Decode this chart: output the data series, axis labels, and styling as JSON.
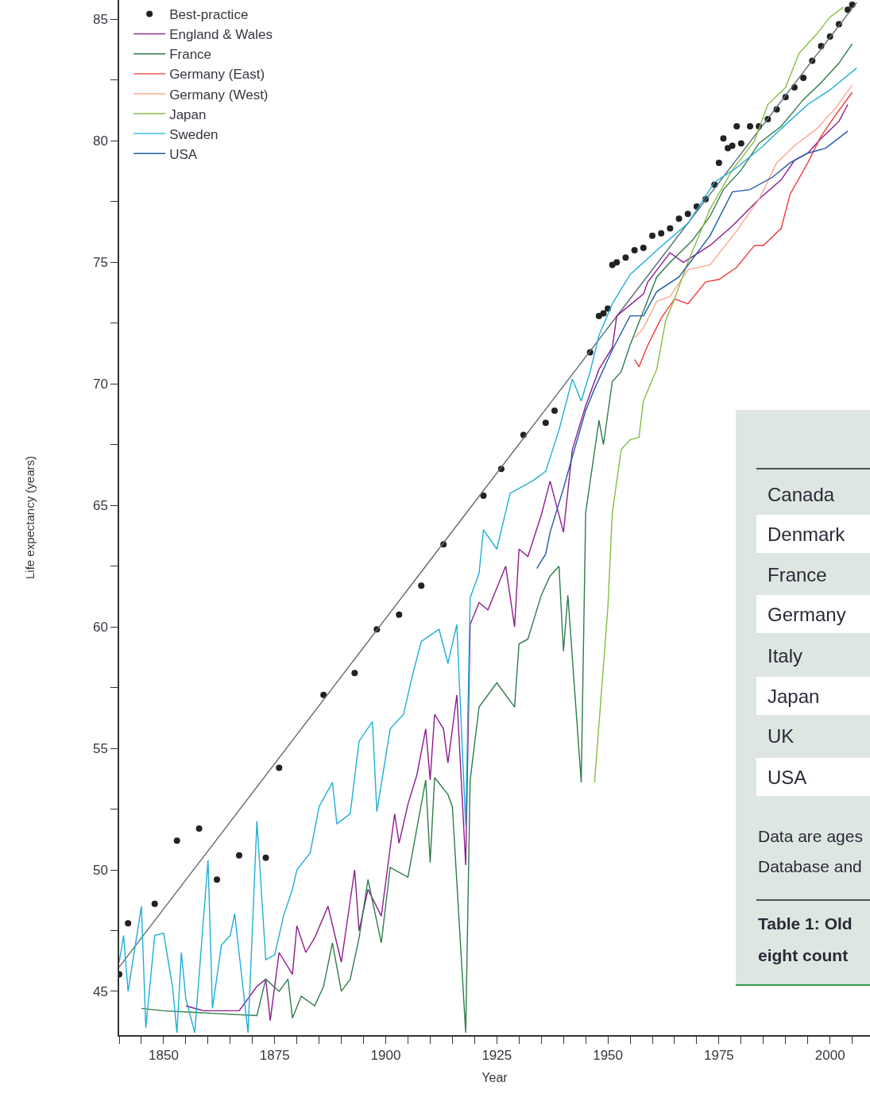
{
  "chart_data": {
    "type": "line",
    "xlabel": "Year",
    "ylabel": "Life expectancy (years)",
    "xlim": [
      1840,
      2009
    ],
    "ylim": [
      43.2,
      85.8
    ],
    "xticks": [
      {
        "value": 1840,
        "label": null
      },
      {
        "value": 1845,
        "label": null
      },
      1850,
      {
        "value": 1855,
        "label": null
      },
      {
        "value": 1860,
        "label": null
      },
      {
        "value": 1865,
        "label": null
      },
      {
        "value": 1870,
        "label": null
      },
      1875,
      {
        "value": 1880,
        "label": null
      },
      {
        "value": 1885,
        "label": null
      },
      {
        "value": 1890,
        "label": null
      },
      {
        "value": 1895,
        "label": null
      },
      1900,
      {
        "value": 1905,
        "label": null
      },
      {
        "value": 1910,
        "label": null
      },
      {
        "value": 1915,
        "label": null
      },
      {
        "value": 1920,
        "label": null
      },
      1925,
      {
        "value": 1930,
        "label": null
      },
      {
        "value": 1935,
        "label": null
      },
      {
        "value": 1940,
        "label": null
      },
      {
        "value": 1945,
        "label": null
      },
      1950,
      {
        "value": 1955,
        "label": null
      },
      {
        "value": 1960,
        "label": null
      },
      {
        "value": 1965,
        "label": null
      },
      {
        "value": 1970,
        "label": null
      },
      1975,
      {
        "value": 1980,
        "label": null
      },
      {
        "value": 1985,
        "label": null
      },
      {
        "value": 1990,
        "label": null
      },
      {
        "value": 1995,
        "label": null
      },
      2000,
      {
        "value": 2005,
        "label": null
      }
    ],
    "yticks": [
      45,
      {
        "value": 47.5,
        "label": null
      },
      50,
      {
        "value": 52.5,
        "label": null
      },
      55,
      {
        "value": 57.5,
        "label": null
      },
      60,
      {
        "value": 62.5,
        "label": null
      },
      65,
      {
        "value": 67.5,
        "label": null
      },
      70,
      {
        "value": 72.5,
        "label": null
      },
      75,
      {
        "value": 77.5,
        "label": null
      },
      80,
      {
        "value": 82.5,
        "label": null
      },
      85
    ],
    "grid": false,
    "legend": "top left",
    "line_style": "solid",
    "series": [
      {
        "name": "Best-practice",
        "type": "scatter",
        "marker": "circle",
        "color": "#222222",
        "x": [
          1840,
          1842,
          1848,
          1853,
          1858,
          1862,
          1867,
          1873,
          1876,
          1886,
          1893,
          1898,
          1903,
          1908,
          1913,
          1922,
          1926,
          1931,
          1936,
          1938,
          1946,
          1948,
          1949,
          1950,
          1951,
          1952,
          1954,
          1956,
          1958,
          1960,
          1962,
          1964,
          1966,
          1968,
          1970,
          1972,
          1974,
          1975,
          1976,
          1977,
          1978,
          1979,
          1980,
          1982,
          1984,
          1986,
          1988,
          1990,
          1992,
          1994,
          1996,
          1998,
          2000,
          2002,
          2004,
          2005
        ],
        "values": [
          45.7,
          47.8,
          48.6,
          51.2,
          51.7,
          49.6,
          50.6,
          50.5,
          54.2,
          57.2,
          58.1,
          59.9,
          60.5,
          61.7,
          63.4,
          65.4,
          66.5,
          67.9,
          68.4,
          68.9,
          71.3,
          72.8,
          72.9,
          73.1,
          74.9,
          75.0,
          75.2,
          75.5,
          75.6,
          76.1,
          76.2,
          76.4,
          76.8,
          77.0,
          77.3,
          77.6,
          78.2,
          79.1,
          80.1,
          79.7,
          79.8,
          80.6,
          79.9,
          80.6,
          80.6,
          80.9,
          81.3,
          81.8,
          82.2,
          82.6,
          83.3,
          83.9,
          84.3,
          84.8,
          85.4,
          85.6
        ]
      },
      {
        "type": "line",
        "color": "#5b6e74",
        "x": [
          1840,
          2006
        ],
        "values": [
          46.0,
          85.7
        ]
      },
      {
        "name": "England & Wales",
        "color": "#8e1b8e",
        "x": [
          1855,
          1859,
          1867,
          1871,
          1873,
          1874,
          1876,
          1879,
          1880,
          1882,
          1884,
          1887,
          1890,
          1893,
          1894,
          1896,
          1899,
          1901,
          1902,
          1903,
          1905,
          1907,
          1909,
          1910,
          1911,
          1913,
          1914,
          1916,
          1918,
          1919,
          1921,
          1923,
          1925,
          1927,
          1929,
          1930,
          1932,
          1935,
          1937,
          1940,
          1942,
          1945,
          1948,
          1951,
          1952,
          1958,
          1959,
          1964,
          1967,
          1973,
          1978,
          1984,
          1989,
          1992,
          1995,
          1998,
          2002,
          2004
        ],
        "values": [
          44.4,
          44.2,
          44.2,
          45.2,
          45.5,
          43.8,
          46.6,
          45.7,
          47.7,
          46.6,
          47.2,
          48.5,
          46.2,
          50.0,
          47.5,
          49.2,
          48.1,
          50.9,
          52.3,
          51.1,
          52.7,
          53.9,
          55.8,
          53.7,
          56.4,
          55.8,
          54.4,
          57.2,
          50.2,
          60.1,
          61.0,
          60.7,
          61.6,
          62.5,
          60.0,
          63.2,
          62.9,
          64.6,
          66.0,
          63.9,
          67.3,
          69.1,
          70.6,
          71.5,
          72.8,
          73.7,
          74.2,
          75.4,
          75.0,
          75.7,
          76.5,
          77.6,
          78.4,
          79.2,
          79.5,
          80.1,
          80.8,
          81.5
        ]
      },
      {
        "name": "France",
        "color": "#2e7d4a",
        "x": [
          1845,
          1850,
          1871,
          1873,
          1876,
          1878,
          1879,
          1881,
          1884,
          1886,
          1888,
          1890,
          1892,
          1894,
          1896,
          1899,
          1901,
          1903,
          1905,
          1909,
          1910,
          1911,
          1914,
          1915,
          1918,
          1919,
          1921,
          1925,
          1929,
          1930,
          1932,
          1935,
          1937,
          1939,
          1940,
          1941,
          1944,
          1945,
          1948,
          1949,
          1951,
          1953,
          1955,
          1961,
          1964,
          1969,
          1973,
          1976,
          1980,
          1984,
          1989,
          1994,
          1998,
          2002,
          2005
        ],
        "values": [
          44.3,
          44.2,
          44.0,
          45.5,
          45.0,
          45.5,
          43.9,
          44.8,
          44.4,
          45.2,
          47.0,
          45.0,
          45.5,
          47.2,
          49.6,
          47.0,
          50.1,
          49.9,
          49.7,
          53.7,
          50.3,
          53.8,
          53.1,
          52.6,
          43.3,
          53.7,
          56.7,
          57.7,
          56.7,
          59.3,
          59.5,
          61.3,
          62.1,
          62.5,
          59.0,
          61.3,
          53.6,
          64.7,
          68.5,
          67.5,
          70.1,
          70.5,
          71.6,
          74.4,
          75.0,
          75.9,
          76.9,
          78.0,
          78.8,
          79.9,
          80.6,
          81.7,
          82.4,
          83.2,
          84.0
        ]
      },
      {
        "name": "Germany (East)",
        "color": "#ee3b3b",
        "x": [
          1956,
          1957,
          1959,
          1962,
          1965,
          1968,
          1972,
          1975,
          1979,
          1983,
          1985,
          1989,
          1991,
          1995,
          1998,
          2001,
          2005
        ],
        "values": [
          71.0,
          70.7,
          71.6,
          72.7,
          73.5,
          73.3,
          74.2,
          74.3,
          74.8,
          75.7,
          75.7,
          76.4,
          77.8,
          79.1,
          80.2,
          81.0,
          82.0
        ]
      },
      {
        "name": "Germany (West)",
        "color": "#f9a88c",
        "x": [
          1956,
          1958,
          1961,
          1964,
          1968,
          1973,
          1979,
          1984,
          1988,
          1992,
          1997,
          2001,
          2005
        ],
        "values": [
          71.9,
          72.3,
          73.4,
          73.6,
          74.7,
          74.9,
          76.3,
          77.6,
          79.1,
          79.8,
          80.5,
          81.3,
          82.3
        ]
      },
      {
        "name": "Japan",
        "color": "#86bc42",
        "x": [
          1947,
          1950,
          1951,
          1953,
          1955,
          1957,
          1958,
          1961,
          1963,
          1965,
          1968,
          1973,
          1978,
          1983,
          1986,
          1990,
          1993,
          1997,
          2000,
          2003
        ],
        "values": [
          53.6,
          60.8,
          64.7,
          67.3,
          67.7,
          67.8,
          69.3,
          70.6,
          72.6,
          73.5,
          75.0,
          77.2,
          78.8,
          80.0,
          81.5,
          82.2,
          83.6,
          84.4,
          85.1,
          85.5
        ]
      },
      {
        "name": "Sweden",
        "color": "#1eaed8",
        "x": [
          1840,
          1841,
          1842,
          1845,
          1846,
          1848,
          1850,
          1852,
          1853,
          1854,
          1855,
          1857,
          1860,
          1861,
          1863,
          1865,
          1866,
          1869,
          1871,
          1873,
          1875,
          1877,
          1879,
          1880,
          1883,
          1885,
          1888,
          1889,
          1892,
          1894,
          1897,
          1898,
          1901,
          1904,
          1906,
          1908,
          1912,
          1914,
          1916,
          1918,
          1919,
          1921,
          1922,
          1925,
          1928,
          1933,
          1936,
          1939,
          1942,
          1944,
          1946,
          1948,
          1951,
          1955,
          1961,
          1968,
          1974,
          1979,
          1985,
          1989,
          1995,
          2000,
          2006
        ],
        "values": [
          46.2,
          47.3,
          45.0,
          48.5,
          43.5,
          47.3,
          47.4,
          45.2,
          43.3,
          46.6,
          44.7,
          43.3,
          50.4,
          44.3,
          46.9,
          47.3,
          48.2,
          43.3,
          52.0,
          46.3,
          46.5,
          48.1,
          49.2,
          50.0,
          50.7,
          52.6,
          53.6,
          51.9,
          52.3,
          55.3,
          56.1,
          52.4,
          55.8,
          56.4,
          58.0,
          59.4,
          59.9,
          58.5,
          60.1,
          51.8,
          61.2,
          62.2,
          64.0,
          63.2,
          65.5,
          66.0,
          66.4,
          68.1,
          70.2,
          69.3,
          70.5,
          72.0,
          73.3,
          74.5,
          75.5,
          76.6,
          78.3,
          78.9,
          79.8,
          80.5,
          81.5,
          82.1,
          83.0
        ]
      },
      {
        "name": "USA",
        "color": "#1e5aa8",
        "x": [
          1934,
          1936,
          1937,
          1940,
          1942,
          1945,
          1947,
          1951,
          1955,
          1958,
          1961,
          1966,
          1973,
          1978,
          1982,
          1987,
          1991,
          1995,
          1999,
          2004
        ],
        "values": [
          62.4,
          63.0,
          63.9,
          65.7,
          67.0,
          68.9,
          69.8,
          71.4,
          72.8,
          72.8,
          73.8,
          74.4,
          76.1,
          77.9,
          78.0,
          78.5,
          79.1,
          79.5,
          79.7,
          80.4
        ]
      }
    ],
    "annotations": [
      "Canada",
      "Denmark",
      "France",
      "Germany",
      "Italy",
      "Japan",
      "UK",
      "USA",
      "Data are ages",
      "Database and",
      "Table 1: Old",
      "eight count"
    ]
  }
}
